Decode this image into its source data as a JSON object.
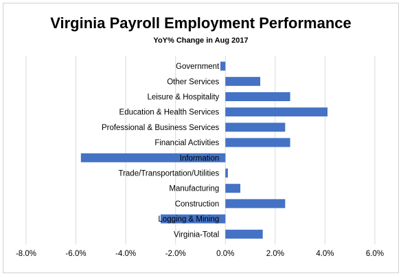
{
  "chart_data": {
    "type": "bar",
    "orientation": "horizontal",
    "title": "Virginia Payroll Employment Performance",
    "subtitle": "YoY% Change in Aug 2017",
    "xlabel": "",
    "ylabel": "",
    "categories": [
      "Government",
      "Other Services",
      "Leisure & Hospitality",
      "Education & Health Services",
      "Professional & Business Services",
      "Financial Activities",
      "Information",
      "Trade/Transportation/Utilities",
      "Manufacturing",
      "Construction",
      "Logging & Mining",
      "Virginia-Total"
    ],
    "values": [
      -0.2,
      1.4,
      2.6,
      4.1,
      2.4,
      2.6,
      -5.8,
      0.1,
      0.6,
      2.4,
      -2.6,
      1.5
    ],
    "xlim": [
      -8,
      6
    ],
    "xticks": [
      -8,
      -6,
      -4,
      -2,
      0,
      2,
      4,
      6
    ],
    "xtick_labels": [
      "-8.0%",
      "-6.0%",
      "-4.0%",
      "-2.0%",
      "0.0%",
      "2.0%",
      "4.0%",
      "6.0%"
    ],
    "grid": "vertical",
    "legend": "none",
    "bar_color": "#4472c4"
  }
}
